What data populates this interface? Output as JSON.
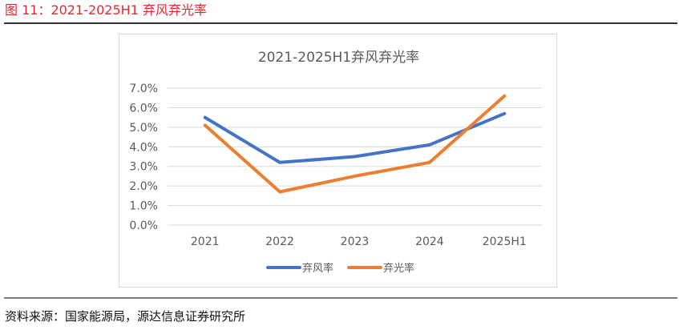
{
  "figure": {
    "title": "图 11：2021-2025H1 弃风弃光率",
    "source": "资料来源：国家能源局，源达信息证券研究所",
    "title_color": "#e8272c"
  },
  "chart_data": {
    "type": "line",
    "title": "2021-2025H1弃风弃光率",
    "categories": [
      "2021",
      "2022",
      "2023",
      "2024",
      "2025H1"
    ],
    "series": [
      {
        "name": "弃风率",
        "color": "#4472c4",
        "values": [
          5.5,
          3.2,
          3.5,
          4.1,
          5.7
        ]
      },
      {
        "name": "弃光率",
        "color": "#ed7d31",
        "values": [
          5.1,
          1.7,
          2.5,
          3.2,
          6.6
        ]
      }
    ],
    "xlabel": "",
    "ylabel": "",
    "ylim": [
      0,
      7
    ],
    "yticks": [
      "0.0%",
      "1.0%",
      "2.0%",
      "3.0%",
      "4.0%",
      "5.0%",
      "6.0%",
      "7.0%"
    ],
    "grid": true,
    "legend_position": "bottom"
  }
}
